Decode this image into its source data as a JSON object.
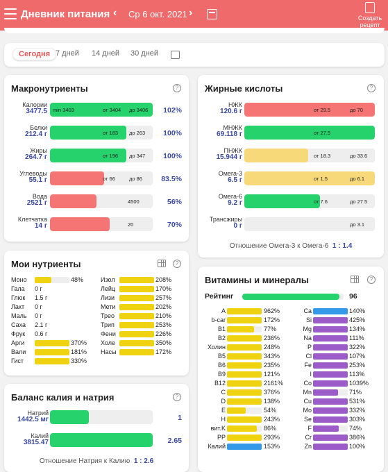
{
  "header": {
    "title": "Дневник питания",
    "prev": "‹",
    "date": "Ср 6 окт. 2021",
    "next": "›",
    "create": [
      "Создать",
      "рецепт"
    ]
  },
  "tabs": [
    "Сегодня",
    "7 дней",
    "14 дней",
    "30 дней"
  ],
  "macro": {
    "title": "Макронутриенты",
    "rows": [
      {
        "name": "Калории",
        "value": "3477.5",
        "min": "min 3403",
        "from": "от 3404",
        "to": "до 3406",
        "pct": "102%",
        "color": "g",
        "fill": 1.0
      },
      {
        "name": "Белки",
        "value": "212.4 г",
        "from": "от 183",
        "to": "до 263",
        "pct": "100%",
        "color": "g",
        "fill": 0.74
      },
      {
        "name": "Жиры",
        "value": "264.7 г",
        "from": "от 196",
        "to": "до 347",
        "pct": "100%",
        "color": "g",
        "fill": 0.74
      },
      {
        "name": "Углеводы",
        "value": "55.1 г",
        "from": "от 66",
        "to": "до 86",
        "pct": "83.5%",
        "color": "r",
        "fill": 0.53
      },
      {
        "name": "Вода",
        "value": "2521 г",
        "mid": "4500",
        "pct": "56%",
        "color": "r",
        "fill": 0.45
      },
      {
        "name": "Клетчатка",
        "value": "14 г",
        "mid": "20",
        "pct": "70%",
        "color": "r",
        "fill": 0.58
      }
    ]
  },
  "fat": {
    "title": "Жирные кислоты",
    "rows": [
      {
        "name": "НЖК",
        "value": "120.6 г",
        "from": "от 29.5",
        "to": "до 70",
        "color": "r",
        "fill": 1.0
      },
      {
        "name": "МНЖК",
        "value": "69.118 г",
        "from": "от 27.5",
        "color": "g",
        "fill": 1.0
      },
      {
        "name": "ПНЖК",
        "value": "15.944 г",
        "from": "от 18.3",
        "to": "до 33.6",
        "color": "y",
        "fill": 0.49
      },
      {
        "name": "Омега-3",
        "value": "6.5 г",
        "from": "от 1.5",
        "to": "до 6.1",
        "color": "y",
        "fill": 1.0
      },
      {
        "name": "Омега-6",
        "value": "9.2 г",
        "from": "от 7.6",
        "to": "до 27.5",
        "color": "g",
        "fill": 0.58
      },
      {
        "name": "Трансжиры",
        "value": "0 г",
        "to": "до 3.1",
        "color": "g",
        "fill": 0
      }
    ],
    "ratio_label": "Отношение Омега-3 к Омега-6",
    "ratio": "1 : 1.4"
  },
  "my": {
    "title": "Мои нутриенты",
    "left": [
      {
        "n": "Моно",
        "v": "48%",
        "f": 0.48
      },
      {
        "n": "Гала",
        "v": "0 г"
      },
      {
        "n": "Глюк",
        "v": "1.5 г"
      },
      {
        "n": "Лакт",
        "v": "0 г"
      },
      {
        "n": "Маль",
        "v": "0 г"
      },
      {
        "n": "Саха",
        "v": "2.1 г"
      },
      {
        "n": "Фрук",
        "v": "0.6 г"
      },
      {
        "n": "Арги",
        "v": "370%",
        "f": 1
      },
      {
        "n": "Вали",
        "v": "181%",
        "f": 1
      },
      {
        "n": "Гист",
        "v": "330%",
        "f": 1
      }
    ],
    "right": [
      {
        "n": "Изол",
        "v": "208%"
      },
      {
        "n": "Лейц",
        "v": "170%"
      },
      {
        "n": "Лизи",
        "v": "257%"
      },
      {
        "n": "Мети",
        "v": "202%"
      },
      {
        "n": "Трео",
        "v": "210%"
      },
      {
        "n": "Трип",
        "v": "253%"
      },
      {
        "n": "Фени",
        "v": "226%"
      },
      {
        "n": "Холе",
        "v": "350%"
      },
      {
        "n": "Насы",
        "v": "172%"
      }
    ]
  },
  "vit": {
    "title": "Витамины и минералы",
    "rating_label": "Рейтинг",
    "rating": "96",
    "left": [
      {
        "n": "A",
        "v": "962%"
      },
      {
        "n": "b-car",
        "v": "172%"
      },
      {
        "n": "B1",
        "v": "77%",
        "f": 0.77
      },
      {
        "n": "B2",
        "v": "236%"
      },
      {
        "n": "Холин",
        "v": "248%"
      },
      {
        "n": "B5",
        "v": "343%"
      },
      {
        "n": "B6",
        "v": "235%"
      },
      {
        "n": "B9",
        "v": "121%"
      },
      {
        "n": "B12",
        "v": "2161%"
      },
      {
        "n": "C",
        "v": "376%"
      },
      {
        "n": "D",
        "v": "138%"
      },
      {
        "n": "E",
        "v": "54%",
        "f": 0.54
      },
      {
        "n": "H",
        "v": "243%"
      },
      {
        "n": "вит.K",
        "v": "86%",
        "f": 0.86
      },
      {
        "n": "PP",
        "v": "293%"
      },
      {
        "n": "Калий",
        "v": "153%",
        "c": "bl"
      }
    ],
    "right": [
      {
        "n": "Ca",
        "v": "140%",
        "c": "bl"
      },
      {
        "n": "Si",
        "v": "425%"
      },
      {
        "n": "Mg",
        "v": "134%"
      },
      {
        "n": "Na",
        "v": "111%"
      },
      {
        "n": "P",
        "v": "322%"
      },
      {
        "n": "Cl",
        "v": "107%"
      },
      {
        "n": "Fe",
        "v": "253%"
      },
      {
        "n": "I",
        "v": "113%"
      },
      {
        "n": "Co",
        "v": "1039%"
      },
      {
        "n": "Mn",
        "v": "71%",
        "f": 0.71
      },
      {
        "n": "Cu",
        "v": "531%"
      },
      {
        "n": "Mo",
        "v": "332%"
      },
      {
        "n": "Se",
        "v": "303%"
      },
      {
        "n": "F",
        "v": "74%",
        "f": 0.74
      },
      {
        "n": "Cr",
        "v": "386%"
      },
      {
        "n": "Zn",
        "v": "100%"
      }
    ]
  },
  "kna": {
    "title": "Баланс калия и натрия",
    "rows": [
      {
        "name": "Натрий",
        "value": "1442.5 мг",
        "pct": "1",
        "fill": 0.38
      },
      {
        "name": "Калий",
        "value": "3815.47",
        "pct": "2.65",
        "fill": 1.0
      }
    ],
    "ratio_label": "Отношение Натрия к Калию",
    "ratio": "1 : 2.6"
  },
  "colors": {
    "header": "#ef6b6b",
    "green": "#26d26b",
    "red": "#f57575",
    "yellow": "#f0d310",
    "blue": "#3399e8",
    "purple": "#9b5bc8"
  }
}
